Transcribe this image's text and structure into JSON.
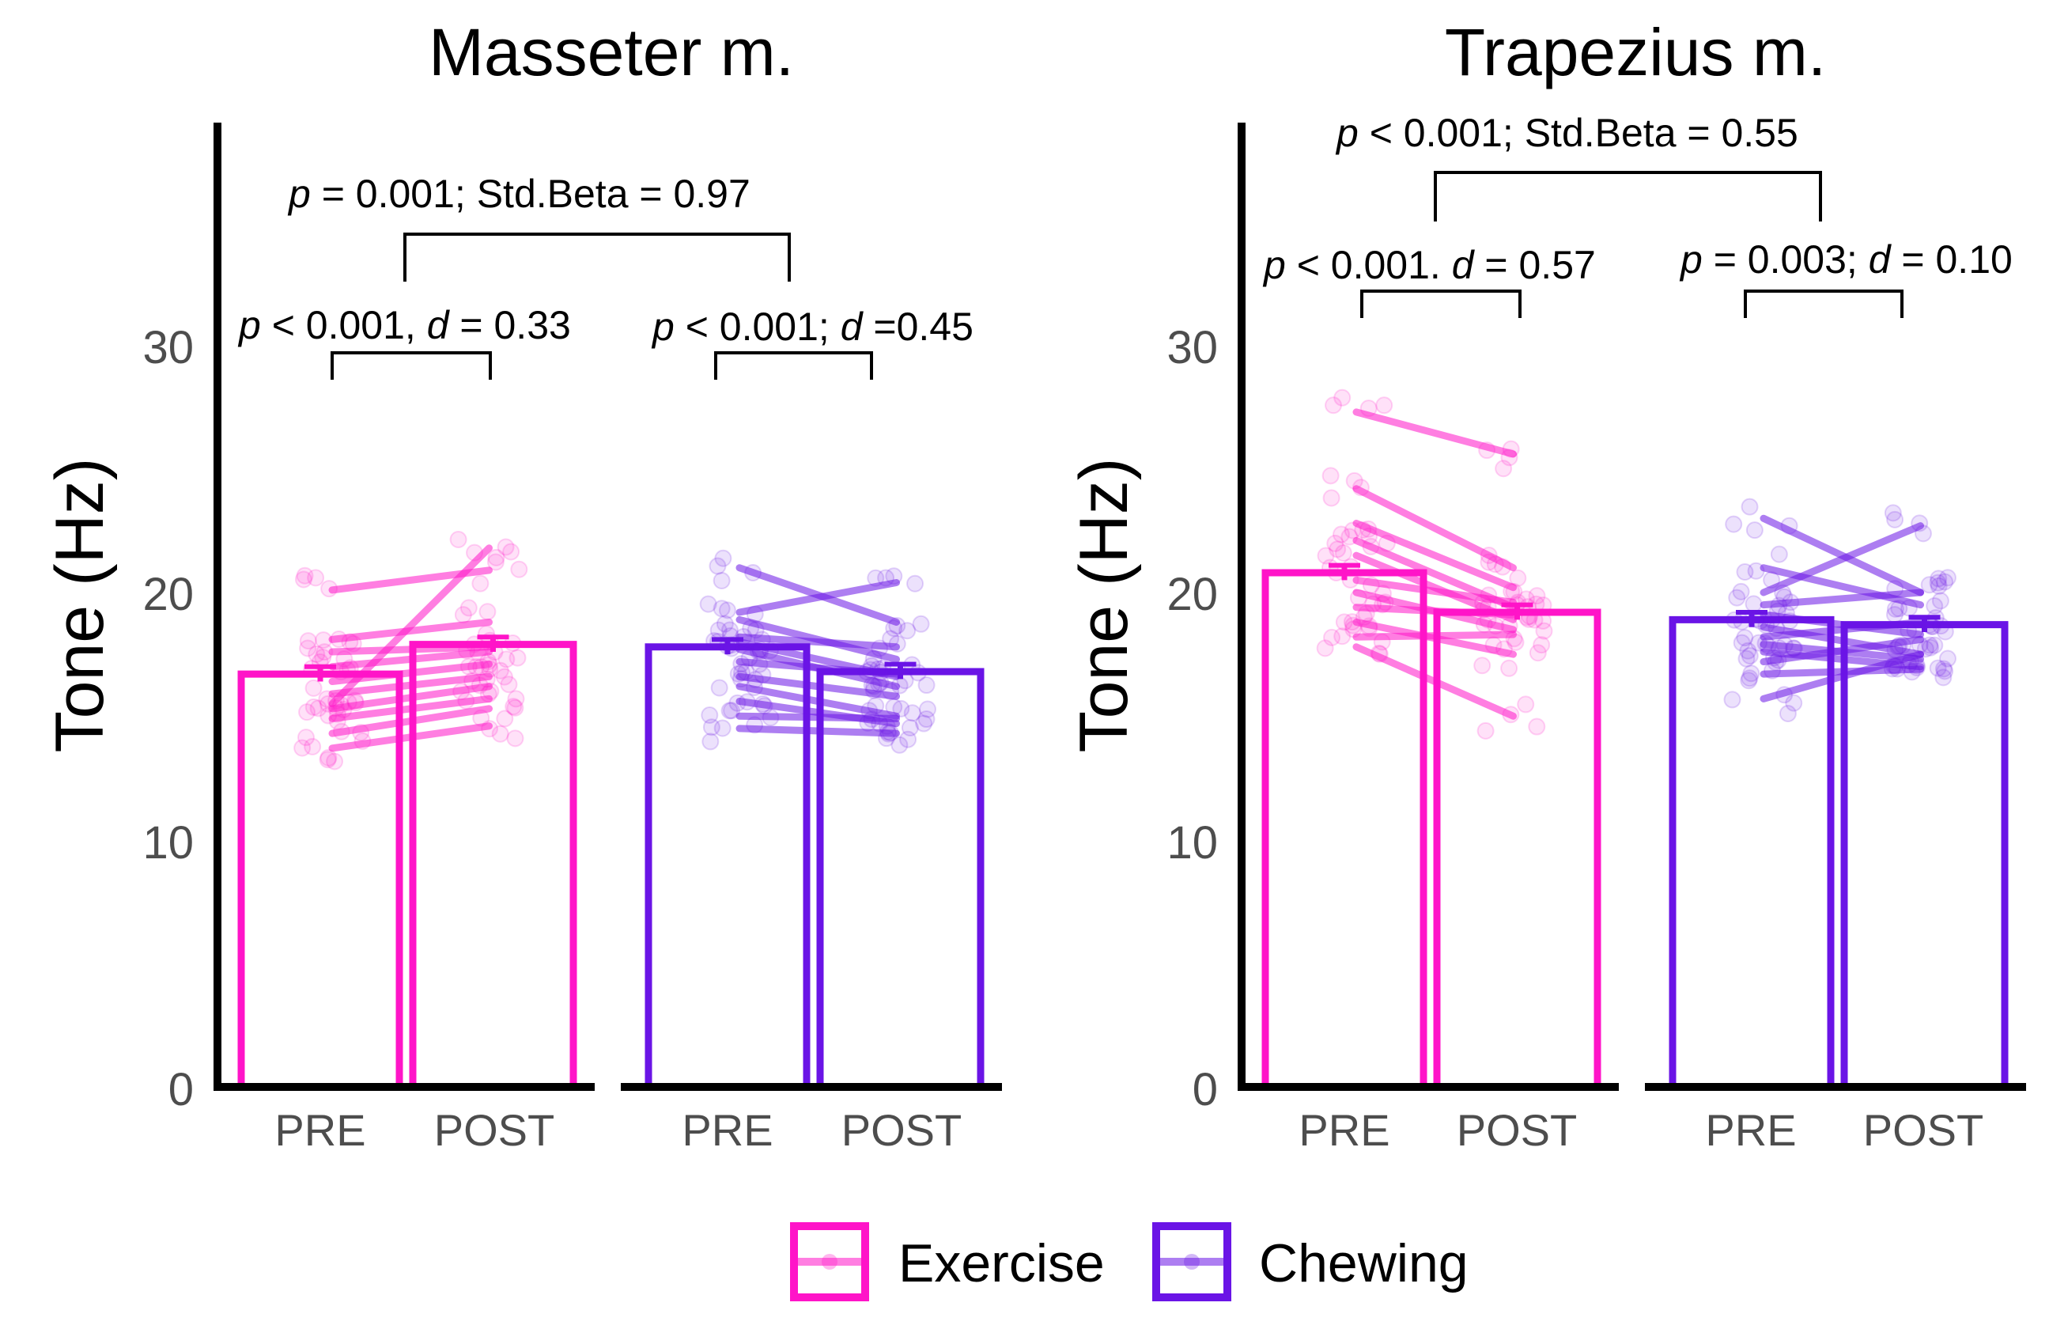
{
  "colors": {
    "exercise": "#ff14c8",
    "chewing": "#6a14e6",
    "axis": "#000000",
    "tick_text": "#4d4d4d"
  },
  "chart_data": [
    {
      "type": "bar",
      "title": "Masseter m.",
      "ylabel": "Tone (Hz)",
      "ylim": [
        0,
        38
      ],
      "yticks": [
        "0",
        "10",
        "20",
        "30"
      ],
      "groups": [
        {
          "name": "Exercise",
          "categories": [
            "PRE",
            "POST"
          ],
          "values": [
            16.7,
            17.9
          ],
          "se": [
            0.3,
            0.3
          ],
          "subjects": [
            [
              20.1,
              20.9
            ],
            [
              18.1,
              18.8
            ],
            [
              17.6,
              17.8
            ],
            [
              17.0,
              17.6
            ],
            [
              16.4,
              17.1
            ],
            [
              15.9,
              16.6
            ],
            [
              15.3,
              16.2
            ],
            [
              14.9,
              15.7
            ],
            [
              14.3,
              15.3
            ],
            [
              13.7,
              14.6
            ],
            [
              15.5,
              21.8
            ]
          ]
        },
        {
          "name": "Chewing",
          "categories": [
            "PRE",
            "POST"
          ],
          "values": [
            17.8,
            16.8
          ],
          "se": [
            0.3,
            0.3
          ],
          "subjects": [
            [
              21.0,
              18.8
            ],
            [
              19.2,
              20.4
            ],
            [
              18.9,
              17.3
            ],
            [
              18.2,
              17.8
            ],
            [
              17.7,
              16.2
            ],
            [
              17.2,
              16.7
            ],
            [
              16.6,
              15.8
            ],
            [
              16.2,
              15.0
            ],
            [
              15.6,
              14.7
            ],
            [
              15.0,
              14.9
            ],
            [
              14.5,
              14.3
            ],
            [
              18.0,
              16.6
            ]
          ]
        }
      ],
      "annotations": {
        "between": {
          "p": "p",
          "text": " = 0.001;   Std.Beta = 0.97"
        },
        "exercise": {
          "p": "p",
          "mid": " < 0.001, ",
          "d": "d",
          "end": " = 0.33"
        },
        "chewing": {
          "p": "p",
          "mid": " < 0.001; ",
          "d": "d",
          "end": " =0.45"
        }
      }
    },
    {
      "type": "bar",
      "title": "Trapezius m.",
      "ylabel": "Tone (Hz)",
      "ylim": [
        0,
        38
      ],
      "yticks": [
        "0",
        "10",
        "20",
        "30"
      ],
      "groups": [
        {
          "name": "Exercise",
          "categories": [
            "PRE",
            "POST"
          ],
          "values": [
            20.8,
            19.2
          ],
          "se": [
            0.3,
            0.3
          ],
          "subjects": [
            [
              27.3,
              25.6
            ],
            [
              24.2,
              21.0
            ],
            [
              22.8,
              20.2
            ],
            [
              22.1,
              19.4
            ],
            [
              21.5,
              18.9
            ],
            [
              20.5,
              19.6
            ],
            [
              20.0,
              18.5
            ],
            [
              19.4,
              19.1
            ],
            [
              18.8,
              17.5
            ],
            [
              18.2,
              18.3
            ],
            [
              17.8,
              15.0
            ]
          ]
        },
        {
          "name": "Chewing",
          "categories": [
            "PRE",
            "POST"
          ],
          "values": [
            18.9,
            18.7
          ],
          "se": [
            0.3,
            0.3
          ],
          "subjects": [
            [
              23.0,
              20.0
            ],
            [
              21.0,
              19.5
            ],
            [
              20.0,
              22.7
            ],
            [
              19.5,
              20.0
            ],
            [
              19.1,
              18.3
            ],
            [
              18.6,
              17.5
            ],
            [
              18.2,
              18.8
            ],
            [
              17.9,
              17.3
            ],
            [
              17.6,
              17.0
            ],
            [
              17.2,
              18.1
            ],
            [
              16.7,
              16.9
            ],
            [
              15.7,
              17.5
            ]
          ]
        }
      ],
      "annotations": {
        "between": {
          "p": "p",
          "text": " < 0.001; Std.Beta = 0.55"
        },
        "exercise": {
          "p": "p",
          "mid": " < 0.001. ",
          "d": "d",
          "end": " = 0.57"
        },
        "chewing": {
          "p": "p",
          "mid": " = 0.003; ",
          "d": "d",
          "end": " = 0.10"
        }
      }
    }
  ],
  "legend": {
    "items": [
      "Exercise",
      "Chewing"
    ]
  }
}
